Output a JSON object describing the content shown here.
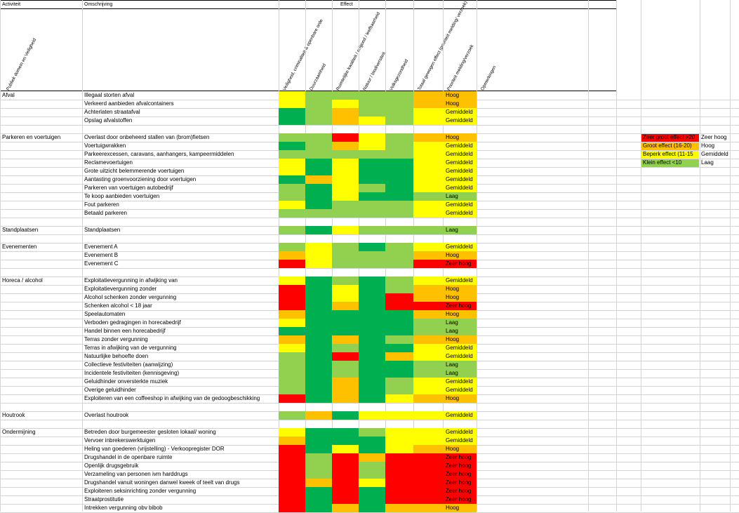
{
  "colors": {
    "r": "#ff0000",
    "o": "#ffc000",
    "y": "#ffff00",
    "l": "#92d050",
    "g": "#00b050"
  },
  "header": {
    "activiteit": "Activiteit",
    "omschrijving": "Omschrijving",
    "effect": "Effect",
    "publiek_domein": "Publiek domein en Veiligheid",
    "columns": [
      "Veiligheid, criminaliteit & openbare orde",
      "Duurzaamheid",
      "Ruimtelijke kwaliteit / erfgoed / leefbaarheid",
      "Natuur / biodiversiteit",
      "Volksgezondheid",
      "Totaal gewogen effect (prioriteit melding/ verzoek)",
      "Prioriteit melding/verzoek",
      "Opmerkingen"
    ]
  },
  "legend": [
    {
      "label": "Zeer groot effect >20",
      "value": "Zeer hoog",
      "color": "r"
    },
    {
      "label": "Groot effect (16-20)",
      "value": "Hoog",
      "color": "o"
    },
    {
      "label": "Beperk effect (11-15",
      "value": "Gemiddeld",
      "color": "y"
    },
    {
      "label": "Klein effect <10",
      "value": "Laag",
      "color": "l"
    }
  ],
  "groups": [
    {
      "name": "Afval",
      "rows": [
        {
          "desc": "Illegaal storten afval",
          "cells": [
            "y",
            "l",
            "l",
            "l",
            "l"
          ],
          "priority": "Hoog",
          "pcolor": "o"
        },
        {
          "desc": "Verkeerd aanbieden afvalcontainers",
          "cells": [
            "y",
            "l",
            "y",
            "l",
            "l"
          ],
          "priority": "Hoog",
          "pcolor": "o"
        },
        {
          "desc": "Achterlaten straatafval",
          "cells": [
            "g",
            "l",
            "o",
            "l",
            "l"
          ],
          "priority": "Gemiddeld",
          "pcolor": "y"
        },
        {
          "desc": "Opslag afvalstoffen",
          "cells": [
            "g",
            "l",
            "o",
            "y",
            "l"
          ],
          "priority": "Gemiddeld",
          "pcolor": "y"
        }
      ]
    },
    {
      "name": "Parkeren en voertuigen",
      "rows": [
        {
          "desc": "Overlast door onbeheerd stallen van (brom)fietsen",
          "cells": [
            "l",
            "l",
            "r",
            "y",
            "l"
          ],
          "priority": "Hoog",
          "pcolor": "o"
        },
        {
          "desc": "Voertuigwrakken",
          "cells": [
            "g",
            "l",
            "o",
            "y",
            "l"
          ],
          "priority": "Gemiddeld",
          "pcolor": "y"
        },
        {
          "desc": "Parkeerexcessen, caravans, aanhangers, kampeermiddelen",
          "cells": [
            "l",
            "l",
            "l",
            "l",
            "l"
          ],
          "priority": "Gemiddeld",
          "pcolor": "y"
        },
        {
          "desc": "Reclamevoertuigen",
          "cells": [
            "y",
            "g",
            "y",
            "g",
            "g"
          ],
          "priority": "Gemiddeld",
          "pcolor": "y"
        },
        {
          "desc": "Grote uitzicht belemmerende voertuigen",
          "cells": [
            "y",
            "g",
            "y",
            "g",
            "g"
          ],
          "priority": "Gemiddeld",
          "pcolor": "y"
        },
        {
          "desc": "Aantasting groenvoorziening door voertuigen",
          "cells": [
            "g",
            "o",
            "y",
            "g",
            "g"
          ],
          "priority": "Gemiddeld",
          "pcolor": "y"
        },
        {
          "desc": "Parkeren van voertuigen autobedrijf",
          "cells": [
            "l",
            "g",
            "y",
            "l",
            "g"
          ],
          "priority": "Gemiddeld",
          "pcolor": "y"
        },
        {
          "desc": "Te koop aanbieden voertuigen",
          "cells": [
            "l",
            "g",
            "y",
            "g",
            "g"
          ],
          "priority": "Laag",
          "pcolor": "l"
        },
        {
          "desc": "Fout parkeren",
          "cells": [
            "y",
            "g",
            "l",
            "l",
            "l"
          ],
          "priority": "Gemiddeld",
          "pcolor": "y"
        },
        {
          "desc": "Betaald parkeren",
          "cells": [
            "l",
            "l",
            "l",
            "l",
            "l"
          ],
          "priority": "Gemiddeld",
          "pcolor": "y"
        }
      ]
    },
    {
      "name": "Standplaatsen",
      "rows": [
        {
          "desc": "Standplaatsen",
          "cells": [
            "l",
            "g",
            "y",
            "l",
            "l"
          ],
          "priority": "Laag",
          "pcolor": "l"
        }
      ]
    },
    {
      "name": "Evenementen",
      "rows": [
        {
          "desc": "Evenement A",
          "cells": [
            "l",
            "y",
            "l",
            "g",
            "l"
          ],
          "priority": "Gemiddeld",
          "pcolor": "y"
        },
        {
          "desc": "Evenement B",
          "cells": [
            "o",
            "y",
            "l",
            "l",
            "l"
          ],
          "priority": "Hoog",
          "pcolor": "o"
        },
        {
          "desc": "Evenement C",
          "cells": [
            "r",
            "y",
            "l",
            "l",
            "l"
          ],
          "priority": "Zeer hoog",
          "pcolor": "r"
        }
      ]
    },
    {
      "name": "Horeca / alcohol",
      "rows": [
        {
          "desc": "Exploitatievergunning in afwijking van",
          "cells": [
            "y",
            "g",
            "l",
            "g",
            "l"
          ],
          "priority": "Gemiddeld",
          "pcolor": "y"
        },
        {
          "desc": "Exploitatievergunning zonder",
          "cells": [
            "r",
            "g",
            "y",
            "g",
            "l"
          ],
          "priority": "Hoog",
          "pcolor": "o"
        },
        {
          "desc": "Alcohol schenken zonder vergunning",
          "cells": [
            "r",
            "g",
            "y",
            "g",
            "r"
          ],
          "priority": "Hoog",
          "pcolor": "o"
        },
        {
          "desc": "Schenken alcohol < 18 jaar",
          "cells": [
            "r",
            "g",
            "o",
            "g",
            "r"
          ],
          "priority": "Zeer hoog",
          "pcolor": "r"
        },
        {
          "desc": "Speelautomaten",
          "cells": [
            "o",
            "g",
            "g",
            "g",
            "g"
          ],
          "priority": "Hoog",
          "pcolor": "o"
        },
        {
          "desc": "Verboden gedragingen in horecabedrijf",
          "cells": [
            "y",
            "g",
            "g",
            "g",
            "g"
          ],
          "priority": "Laag",
          "pcolor": "l"
        },
        {
          "desc": "Handel binnen een horecabedrijf",
          "cells": [
            "g",
            "g",
            "g",
            "g",
            "g"
          ],
          "priority": "Laag",
          "pcolor": "l"
        },
        {
          "desc": "Terras zonder vergunning",
          "cells": [
            "o",
            "g",
            "o",
            "g",
            "l"
          ],
          "priority": "Hoog",
          "pcolor": "o"
        },
        {
          "desc": "Terras in afwijking van de vergunning",
          "cells": [
            "y",
            "g",
            "l",
            "g",
            "g"
          ],
          "priority": "Gemiddeld",
          "pcolor": "y"
        },
        {
          "desc": "Natuurlijke behoefte doen",
          "cells": [
            "l",
            "g",
            "r",
            "g",
            "o"
          ],
          "priority": "Gemiddeld",
          "pcolor": "y"
        },
        {
          "desc": "Collectieve festiviteiten (aanwijzing)",
          "cells": [
            "l",
            "g",
            "l",
            "g",
            "g"
          ],
          "priority": "Laag",
          "pcolor": "l"
        },
        {
          "desc": "Incidentele festiviteiten (kennisgeving)",
          "cells": [
            "l",
            "g",
            "l",
            "g",
            "g"
          ],
          "priority": "Laag",
          "pcolor": "l"
        },
        {
          "desc": "Geluidhinder onversterkte muziek",
          "cells": [
            "l",
            "g",
            "o",
            "g",
            "l"
          ],
          "priority": "Gemiddeld",
          "pcolor": "y"
        },
        {
          "desc": "Overige geluidhinder",
          "cells": [
            "l",
            "g",
            "o",
            "g",
            "l"
          ],
          "priority": "Gemiddeld",
          "pcolor": "y"
        },
        {
          "desc": "Exploiteren van een coffeeshop in afwijking van de gedoogbeschikking",
          "cells": [
            "r",
            "g",
            "o",
            "g",
            "y"
          ],
          "priority": "Hoog",
          "pcolor": "o"
        }
      ]
    },
    {
      "name": "Houtrook",
      "rows": [
        {
          "desc": "Overlast houtrook",
          "cells": [
            "l",
            "o",
            "g",
            "y",
            "y"
          ],
          "priority": "Gemiddeld",
          "pcolor": "y"
        }
      ]
    },
    {
      "name": "Ondermijning",
      "rows": [
        {
          "desc": "Betreden door burgemeester gesloten lokaal/ woning",
          "cells": [
            "y",
            "g",
            "g",
            "l",
            "y"
          ],
          "priority": "Gemiddeld",
          "pcolor": "y"
        },
        {
          "desc": "Vervoer inbrekerswerktuigen",
          "cells": [
            "o",
            "g",
            "g",
            "g",
            "y"
          ],
          "priority": "Gemiddeld",
          "pcolor": "y"
        },
        {
          "desc": "Heling van goederen (vrijstelling) - Verkoopregister DOR",
          "cells": [
            "r",
            "g",
            "y",
            "g",
            "y"
          ],
          "priority": "Hoog",
          "pcolor": "o"
        },
        {
          "desc": "Drugshandel in de openbare ruimte",
          "cells": [
            "r",
            "l",
            "r",
            "o",
            "r"
          ],
          "priority": "Zeer hoog",
          "pcolor": "r"
        },
        {
          "desc": "Openlijk drugsgebruik",
          "cells": [
            "r",
            "l",
            "r",
            "l",
            "r"
          ],
          "priority": "Zeer hoog",
          "pcolor": "r"
        },
        {
          "desc": "Verzameling van personen ivm harddrugs",
          "cells": [
            "r",
            "l",
            "r",
            "l",
            "r"
          ],
          "priority": "Zeer hoog",
          "pcolor": "r"
        },
        {
          "desc": "Drugshandel vanuit woningen danwel kweek of teelt van drugs",
          "cells": [
            "r",
            "o",
            "r",
            "y",
            "r"
          ],
          "priority": "Zeer hoog",
          "pcolor": "r"
        },
        {
          "desc": "Exploiteren seksinrichting zonder vergunning",
          "cells": [
            "r",
            "g",
            "r",
            "g",
            "r"
          ],
          "priority": "Zeer hoog",
          "pcolor": "r"
        },
        {
          "desc": "Straatprostitutie",
          "cells": [
            "r",
            "g",
            "r",
            "g",
            "r"
          ],
          "priority": "Zeer hoog",
          "pcolor": "r"
        },
        {
          "desc": "Intrekken vergunning obv bibob",
          "cells": [
            "r",
            "g",
            "o",
            "g",
            "o"
          ],
          "priority": "Hoog",
          "pcolor": "o"
        }
      ]
    }
  ]
}
